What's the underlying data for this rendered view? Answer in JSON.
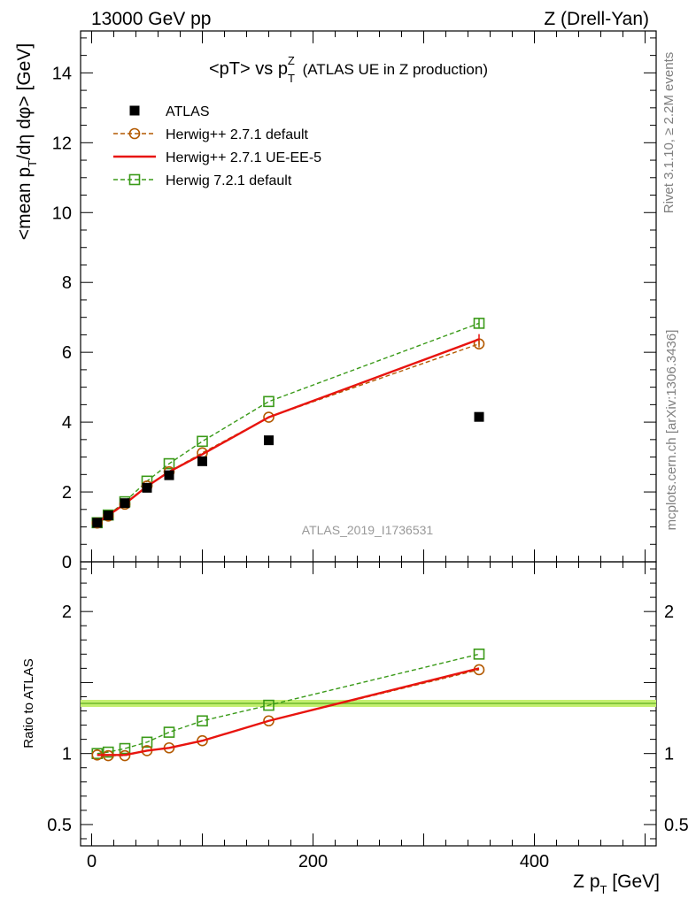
{
  "header": {
    "left": "13000 GeV pp",
    "right": "Z (Drell-Yan)"
  },
  "side_labels": {
    "rivet": "Rivet 3.1.10, ≥ 2.2M events",
    "mcplots": "mcplots.cern.ch [arXiv:1306.3436]"
  },
  "chart_data": {
    "type": "scatter",
    "title": "<pT> vs pTZ (ATLAS UE in Z production)",
    "title_main": "<pT> vs p",
    "title_sup": "Z",
    "title_sub": "T",
    "title_rest": " (ATLAS UE in Z production)",
    "analysis_id": "ATLAS_2019_I1736531",
    "xlabel": "Z p_T [GeV]",
    "ylabel_main": "<mean p_T/dη dφ> [GeV]",
    "ylabel_ratio": "Ratio to ATLAS",
    "xlim": [
      -10,
      510
    ],
    "ylim_main": [
      0,
      15.2
    ],
    "ylim_ratio": [
      0.35,
      2.35
    ],
    "x_ticks": [
      0,
      200,
      400
    ],
    "y_ticks_main": [
      0,
      2,
      4,
      6,
      8,
      10,
      12,
      14
    ],
    "y_ticks_ratio": [
      0.5,
      1,
      2
    ],
    "x": [
      5,
      15,
      30,
      50,
      70,
      100,
      160,
      350
    ],
    "series": [
      {
        "name": "ATLAS",
        "color": "#000000",
        "marker": "filled-square",
        "values": [
          1.12,
          1.33,
          1.68,
          2.12,
          2.48,
          2.88,
          3.48,
          4.15
        ]
      },
      {
        "name": "Herwig++ 2.7.1 default",
        "color": "#b35900",
        "marker": "open-circle",
        "line": "dashed",
        "values": [
          1.11,
          1.31,
          1.65,
          2.17,
          2.58,
          3.12,
          4.14,
          6.24
        ],
        "ratio": [
          0.99,
          0.985,
          0.985,
          1.02,
          1.04,
          1.09,
          1.23,
          1.59
        ]
      },
      {
        "name": "Herwig++ 2.7.1 UE-EE-5",
        "color": "#e8140f",
        "marker": "none",
        "line": "solid",
        "values": [
          1.12,
          1.33,
          1.66,
          2.16,
          2.58,
          3.08,
          4.14,
          6.37
        ],
        "ratio": [
          0.99,
          0.99,
          0.99,
          1.02,
          1.04,
          1.09,
          1.23,
          1.6
        ]
      },
      {
        "name": "Herwig 7.2.1 default",
        "color": "#3a9a18",
        "marker": "open-square",
        "line": "dashed",
        "values": [
          1.12,
          1.34,
          1.72,
          2.31,
          2.81,
          3.45,
          4.59,
          6.83
        ],
        "ratio": [
          1.0,
          1.01,
          1.035,
          1.08,
          1.15,
          1.23,
          1.34,
          1.7
        ]
      }
    ]
  }
}
